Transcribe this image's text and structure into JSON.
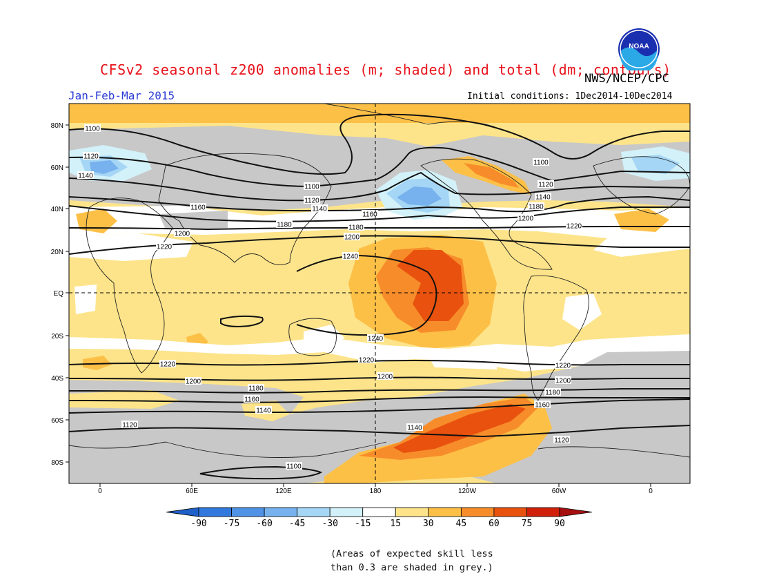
{
  "title": "CFSv2 seasonal z200 anomalies (m; shaded) and total (dm; contours)",
  "agency": "NWS/NCEP/CPC",
  "logo_text": "NOAA",
  "season": "Jan-Feb-Mar 2015",
  "initial_conditions": "Initial conditions: 1Dec2014-10Dec2014",
  "lat_labels": [
    "80N",
    "60N",
    "40N",
    "20N",
    "EQ",
    "20S",
    "40S",
    "60S",
    "80S"
  ],
  "lon_labels": [
    "0",
    "60E",
    "120E",
    "180",
    "120W",
    "60W",
    "0"
  ],
  "colorbar": {
    "labels": [
      "-90",
      "-75",
      "-60",
      "-45",
      "-30",
      "-15",
      "15",
      "30",
      "45",
      "60",
      "75",
      "90"
    ],
    "colors": [
      "#1f5fc8",
      "#3378dd",
      "#4f92e6",
      "#77b2ee",
      "#a5d6f5",
      "#d2f1f9",
      "#ffffff",
      "#fde48a",
      "#fdc047",
      "#f78d2a",
      "#e8520e",
      "#d0200a",
      "#a50f0f"
    ]
  },
  "skill_note_line1": "(Areas of expected skill less",
  "skill_note_line2": "than 0.3 are shaded in grey.)",
  "contour_labels": {
    "nh": [
      "1100",
      "1120",
      "1140",
      "1160",
      "1180",
      "1200",
      "1220",
      "1240"
    ],
    "nh_pacific": [
      "1100",
      "1120",
      "1140",
      "1160",
      "1180",
      "1200",
      "1220"
    ],
    "nh_atlantic": [
      "1100",
      "1120",
      "1140",
      "1180",
      "1200",
      "1220"
    ],
    "sh": [
      "1240",
      "1220",
      "1200",
      "1180",
      "1160",
      "1140",
      "1120",
      "1100"
    ],
    "sh_east": [
      "1220",
      "1200",
      "1180",
      "1160",
      "1120"
    ]
  }
}
